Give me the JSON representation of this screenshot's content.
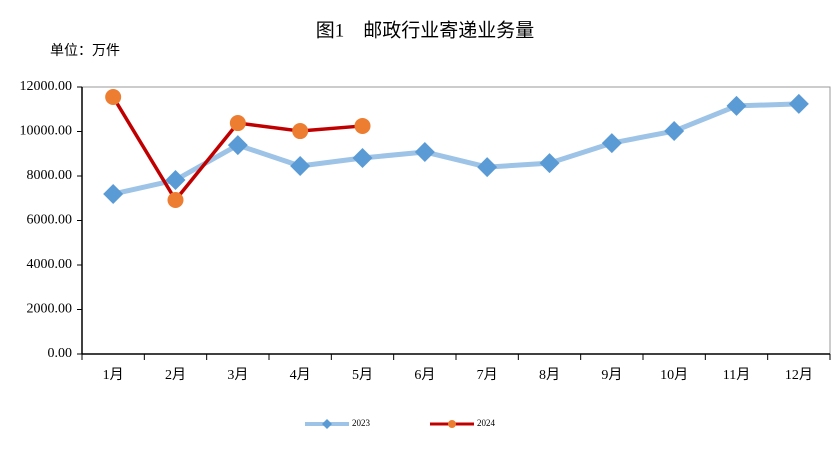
{
  "chart_data": {
    "type": "line",
    "title": "图1　邮政行业寄递业务量",
    "unit_label": "单位：万件",
    "categories": [
      "1月",
      "2月",
      "3月",
      "4月",
      "5月",
      "6月",
      "7月",
      "8月",
      "9月",
      "10月",
      "11月",
      "12月"
    ],
    "series": [
      {
        "name": "2023",
        "color": "#9dc3e6",
        "marker_color": "#5b9bd5",
        "marker": "diamond",
        "values": [
          7190,
          7820,
          9390,
          8450,
          8810,
          9080,
          8400,
          8580,
          9480,
          10020,
          11150,
          11240
        ]
      },
      {
        "name": "2024",
        "color": "#c00000",
        "marker_color": "#ed7d31",
        "marker": "circle",
        "values": [
          11550,
          6920,
          10380,
          10020,
          10250,
          null,
          null,
          null,
          null,
          null,
          null,
          null
        ]
      }
    ],
    "ylim": [
      0,
      12000
    ],
    "yticks": [
      {
        "value": 0,
        "label": "0.00"
      },
      {
        "value": 2000,
        "label": "2000.00"
      },
      {
        "value": 4000,
        "label": "4000.00"
      },
      {
        "value": 6000,
        "label": "6000.00"
      },
      {
        "value": 8000,
        "label": "8000.00"
      },
      {
        "value": 10000,
        "label": "10000.00"
      },
      {
        "value": 12000,
        "label": "12000.00"
      }
    ],
    "legend": "bottom"
  }
}
